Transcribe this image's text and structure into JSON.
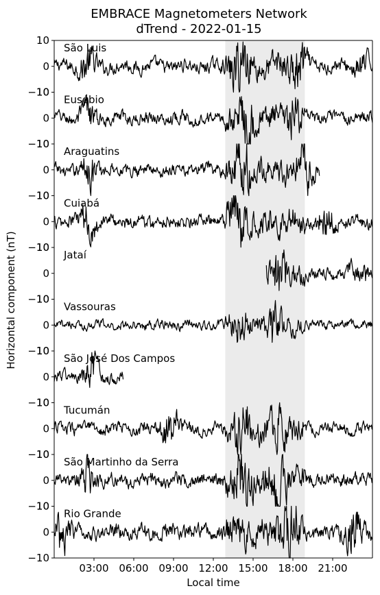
{
  "chart_data": {
    "type": "line",
    "title": "EMBRACE Magnetometers Network",
    "subtitle": "dTrend - 2022-01-15",
    "xlabel": "Local time",
    "ylabel": "Horizontal component (nT)",
    "xlim": [
      0,
      24
    ],
    "ylim": [
      -10,
      10
    ],
    "x_ticks": [
      {
        "value": 3,
        "label": "03:00"
      },
      {
        "value": 6,
        "label": "06:00"
      },
      {
        "value": 9,
        "label": "09:00"
      },
      {
        "value": 12,
        "label": "12:00"
      },
      {
        "value": 15,
        "label": "15:00"
      },
      {
        "value": 18,
        "label": "18:00"
      },
      {
        "value": 21,
        "label": "21:00"
      }
    ],
    "y_ticks": [
      {
        "value": 10,
        "label": "10"
      },
      {
        "value": 0,
        "label": "0"
      },
      {
        "value": -10,
        "label": "−10"
      }
    ],
    "highlight": {
      "x_start": 12.9,
      "x_end": 18.9,
      "color": "#ebebeb"
    },
    "line_color": "#000000",
    "series": [
      {
        "name": "São Luis",
        "x_start": 0,
        "x_end": 24,
        "amplitude": 2.2,
        "bursts": [
          {
            "x": 2.5,
            "amp": 4.5
          },
          {
            "x": 14.0,
            "amp": 7.5
          },
          {
            "x": 18.5,
            "amp": 5
          },
          {
            "x": 23.2,
            "amp": 3
          }
        ]
      },
      {
        "name": "Eusébio",
        "x_start": 0,
        "x_end": 24,
        "amplitude": 2.0,
        "bursts": [
          {
            "x": 2.5,
            "amp": 4.5
          },
          {
            "x": 14.5,
            "amp": 6
          },
          {
            "x": 18.0,
            "amp": 4.5
          }
        ]
      },
      {
        "name": "Araguatins",
        "x_start": 0,
        "x_end": 20.0,
        "amplitude": 2.0,
        "bursts": [
          {
            "x": 2.8,
            "amp": 5
          },
          {
            "x": 14.2,
            "amp": 9
          },
          {
            "x": 19.0,
            "amp": 6
          }
        ]
      },
      {
        "name": "Cuiabá",
        "x_start": 0,
        "x_end": 24,
        "amplitude": 2.2,
        "bursts": [
          {
            "x": 2.5,
            "amp": 5
          },
          {
            "x": 13.8,
            "amp": 8
          },
          {
            "x": 20.5,
            "amp": 4.5
          }
        ]
      },
      {
        "name": "Jataí",
        "x_start": 16.0,
        "x_end": 24,
        "amplitude": 2.0,
        "bursts": [
          {
            "x": 17.0,
            "amp": 5
          },
          {
            "x": 23.0,
            "amp": 4
          }
        ]
      },
      {
        "name": "Vassouras",
        "x_start": 0,
        "x_end": 24,
        "amplitude": 1.5,
        "bursts": [
          {
            "x": 14.0,
            "amp": 5
          },
          {
            "x": 16.5,
            "amp": 5
          }
        ]
      },
      {
        "name": "São José Dos Campos",
        "x_start": 0,
        "x_end": 5.2,
        "amplitude": 2.0,
        "bursts": [
          {
            "x": 2.8,
            "amp": 5
          }
        ]
      },
      {
        "name": "Tucumán",
        "x_start": 0,
        "x_end": 24,
        "amplitude": 2.0,
        "bursts": [
          {
            "x": 8.8,
            "amp": 6
          },
          {
            "x": 14.2,
            "amp": 7.5
          },
          {
            "x": 17.0,
            "amp": 5
          }
        ]
      },
      {
        "name": "São Martinho da Serra",
        "x_start": 0,
        "x_end": 24,
        "amplitude": 2.2,
        "bursts": [
          {
            "x": 2.5,
            "amp": 4.5
          },
          {
            "x": 14.2,
            "amp": 7
          },
          {
            "x": 16.8,
            "amp": 6
          }
        ]
      },
      {
        "name": "Rio Grande",
        "x_start": 0,
        "x_end": 24,
        "amplitude": 2.5,
        "bursts": [
          {
            "x": 0.5,
            "amp": 5
          },
          {
            "x": 17.8,
            "amp": 9
          },
          {
            "x": 22.5,
            "amp": 8
          }
        ]
      }
    ]
  }
}
